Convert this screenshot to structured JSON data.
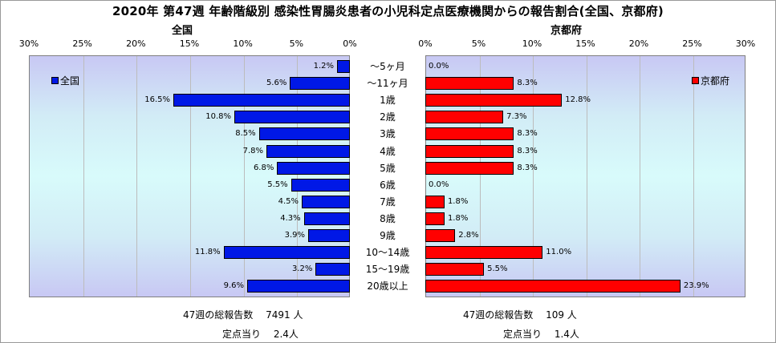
{
  "title": "2020年 第47週 年齢階級別 感染性胃腸炎患者の小児科定点医療機関からの報告割合(全国、京都府)",
  "colors": {
    "national": "#0018e6",
    "kyoto": "#ff0000"
  },
  "axis_ticks": [
    "30%",
    "25%",
    "20%",
    "15%",
    "10%",
    "5%",
    "0%"
  ],
  "axis_ticks_right": [
    "0%",
    "5%",
    "10%",
    "15%",
    "20%",
    "25%",
    "30%"
  ],
  "chart_data": [
    {
      "type": "bar",
      "orientation": "horizontal",
      "title": "全国",
      "xlim": [
        0,
        30
      ],
      "x_reversed": true,
      "grid": true,
      "legend": "top-left",
      "categories": [
        "～5ヶ月",
        "～11ヶ月",
        "1歳",
        "2歳",
        "3歳",
        "4歳",
        "5歳",
        "6歳",
        "7歳",
        "8歳",
        "9歳",
        "10～14歳",
        "15～19歳",
        "20歳以上"
      ],
      "series": [
        {
          "name": "全国",
          "values": [
            1.2,
            5.6,
            16.5,
            10.8,
            8.5,
            7.8,
            6.8,
            5.5,
            4.5,
            4.3,
            3.9,
            11.8,
            3.2,
            9.6
          ],
          "labels": [
            "1.2%",
            "5.6%",
            "16.5%",
            "10.8%",
            "8.5%",
            "7.8%",
            "6.8%",
            "5.5%",
            "4.5%",
            "4.3%",
            "3.9%",
            "11.8%",
            "3.2%",
            "9.6%"
          ]
        }
      ]
    },
    {
      "type": "bar",
      "orientation": "horizontal",
      "title": "京都府",
      "xlim": [
        0,
        30
      ],
      "x_reversed": false,
      "grid": true,
      "legend": "top-right",
      "categories": [
        "～5ヶ月",
        "～11ヶ月",
        "1歳",
        "2歳",
        "3歳",
        "4歳",
        "5歳",
        "6歳",
        "7歳",
        "8歳",
        "9歳",
        "10～14歳",
        "15～19歳",
        "20歳以上"
      ],
      "series": [
        {
          "name": "京都府",
          "values": [
            0.0,
            8.3,
            12.8,
            7.3,
            8.3,
            8.3,
            8.3,
            0.0,
            1.8,
            1.8,
            2.8,
            11.0,
            5.5,
            23.9
          ],
          "labels": [
            "0.0%",
            "8.3%",
            "12.8%",
            "7.3%",
            "8.3%",
            "8.3%",
            "8.3%",
            "0.0%",
            "1.8%",
            "1.8%",
            "2.8%",
            "11.0%",
            "5.5%",
            "23.9%"
          ]
        }
      ]
    }
  ],
  "footer": {
    "national_total": "47週の総報告数　 7491 人",
    "national_per": "定点当り　 2.4人",
    "kyoto_total": "47週の総報告数　 109 人",
    "kyoto_per": "定点当り　 1.4人"
  }
}
